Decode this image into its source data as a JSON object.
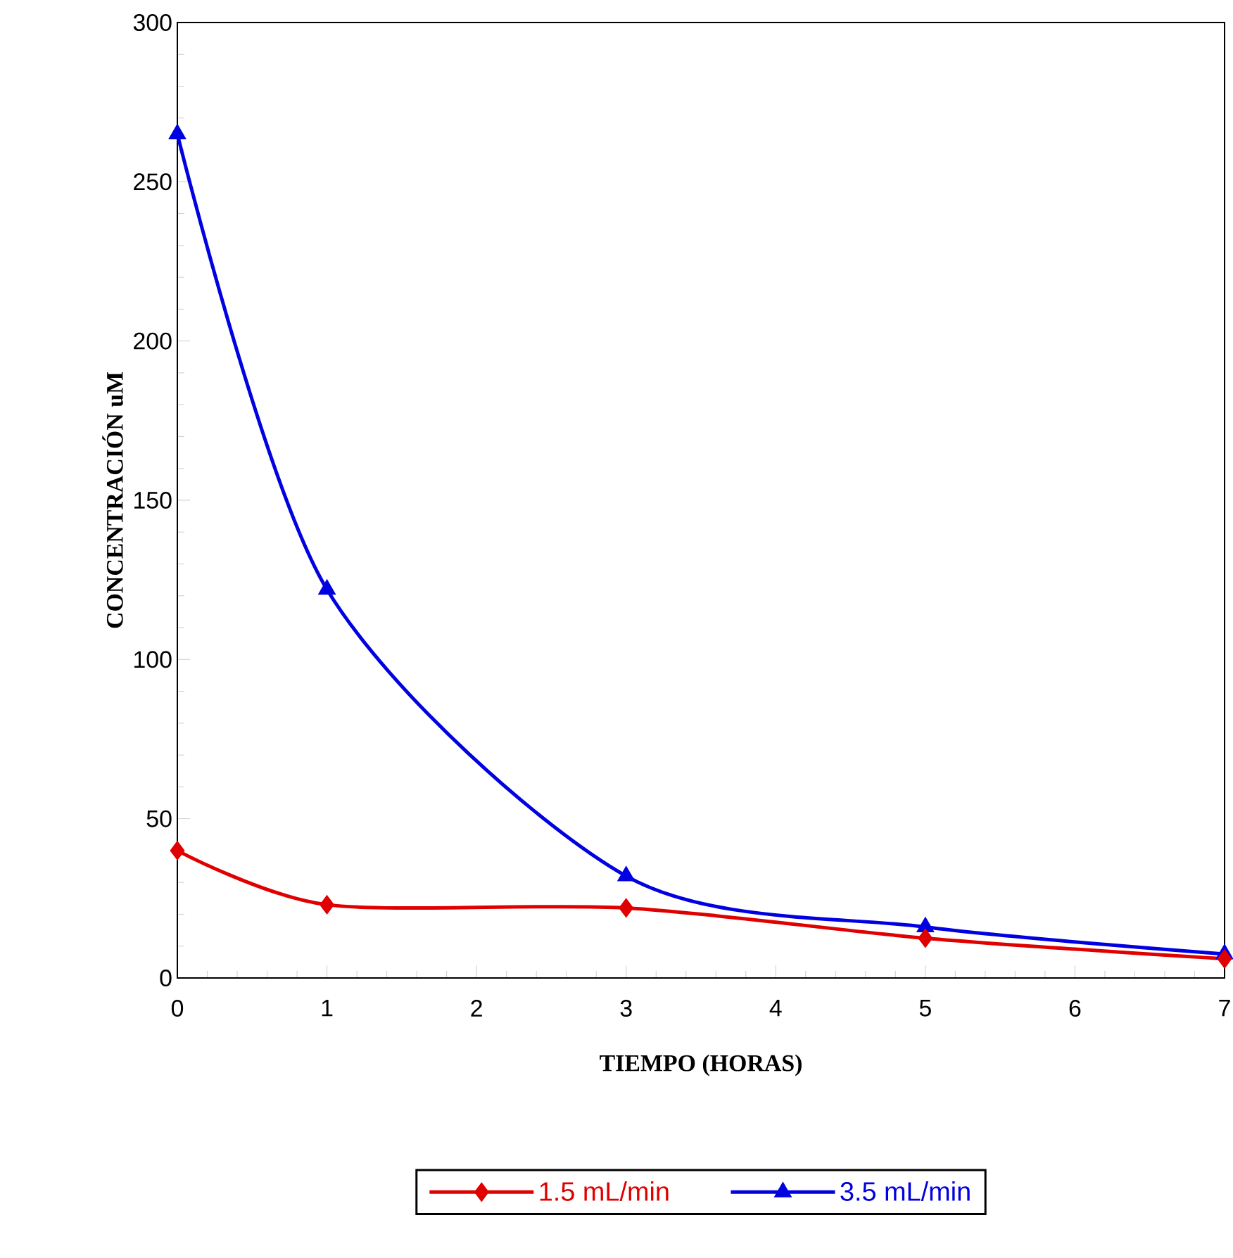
{
  "chart_data": {
    "type": "line",
    "xlabel": "TIEMPO (HORAS)",
    "ylabel": "CONCENTRACIÓN uM",
    "x": [
      0,
      1,
      3,
      5,
      7
    ],
    "series": [
      {
        "name": "1.5 mL/min",
        "color": "#e00000",
        "marker": "diamond",
        "values": [
          40,
          23,
          22,
          12.5,
          6
        ]
      },
      {
        "name": "3.5 mL/min",
        "color": "#0000e0",
        "marker": "triangle",
        "values": [
          265,
          122,
          32,
          16,
          7.5
        ]
      }
    ],
    "xlim": [
      0,
      7
    ],
    "xticks": [
      0,
      1,
      2,
      3,
      4,
      5,
      6,
      7
    ],
    "ylim": [
      0,
      300
    ],
    "yticks": [
      0,
      50,
      100,
      150,
      200,
      250,
      300
    ],
    "grid": false,
    "legend": "bottom"
  }
}
